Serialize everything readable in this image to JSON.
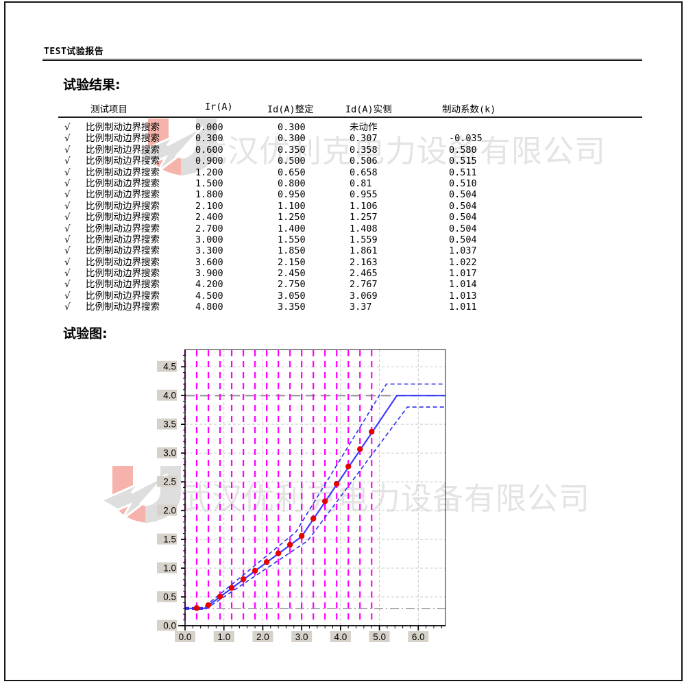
{
  "page": {
    "header_title": "TEST试验报告",
    "results_heading": "试验结果:",
    "chart_heading": "试验图:"
  },
  "watermark": {
    "company": "武汉优利克电力设备有限公司",
    "text_color": "#e4e4e4",
    "logo_red": "#f5b3ab",
    "logo_gray": "#dedede"
  },
  "table": {
    "columns": [
      "测试项目",
      "Ir(A)",
      "Id(A)整定",
      "Id(A)实侧",
      "制动系数(k)"
    ],
    "check_symbol": "√",
    "rows": [
      {
        "check": "√",
        "item": "比例制动边界搜索",
        "ir": "0.000",
        "id_set": "0.300",
        "id_meas": "未动作",
        "k": ""
      },
      {
        "check": "√",
        "item": "比例制动边界搜索",
        "ir": "0.300",
        "id_set": "0.300",
        "id_meas": "0.307",
        "k": "-0.035"
      },
      {
        "check": "√",
        "item": "比例制动边界搜索",
        "ir": "0.600",
        "id_set": "0.350",
        "id_meas": "0.358",
        "k": "0.580"
      },
      {
        "check": "√",
        "item": "比例制动边界搜索",
        "ir": "0.900",
        "id_set": "0.500",
        "id_meas": "0.506",
        "k": "0.515"
      },
      {
        "check": "√",
        "item": "比例制动边界搜索",
        "ir": "1.200",
        "id_set": "0.650",
        "id_meas": "0.658",
        "k": "0.511"
      },
      {
        "check": "√",
        "item": "比例制动边界搜索",
        "ir": "1.500",
        "id_set": "0.800",
        "id_meas": "0.81",
        "k": "0.510"
      },
      {
        "check": "√",
        "item": "比例制动边界搜索",
        "ir": "1.800",
        "id_set": "0.950",
        "id_meas": "0.955",
        "k": "0.504"
      },
      {
        "check": "√",
        "item": "比例制动边界搜索",
        "ir": "2.100",
        "id_set": "1.100",
        "id_meas": "1.106",
        "k": "0.504"
      },
      {
        "check": "√",
        "item": "比例制动边界搜索",
        "ir": "2.400",
        "id_set": "1.250",
        "id_meas": "1.257",
        "k": "0.504"
      },
      {
        "check": "√",
        "item": "比例制动边界搜索",
        "ir": "2.700",
        "id_set": "1.400",
        "id_meas": "1.408",
        "k": "0.504"
      },
      {
        "check": "√",
        "item": "比例制动边界搜索",
        "ir": "3.000",
        "id_set": "1.550",
        "id_meas": "1.559",
        "k": "0.504"
      },
      {
        "check": "√",
        "item": "比例制动边界搜索",
        "ir": "3.300",
        "id_set": "1.850",
        "id_meas": "1.861",
        "k": "1.037"
      },
      {
        "check": "√",
        "item": "比例制动边界搜索",
        "ir": "3.600",
        "id_set": "2.150",
        "id_meas": "2.163",
        "k": "1.022"
      },
      {
        "check": "√",
        "item": "比例制动边界搜索",
        "ir": "3.900",
        "id_set": "2.450",
        "id_meas": "2.465",
        "k": "1.017"
      },
      {
        "check": "√",
        "item": "比例制动边界搜索",
        "ir": "4.200",
        "id_set": "2.750",
        "id_meas": "2.767",
        "k": "1.014"
      },
      {
        "check": "√",
        "item": "比例制动边界搜索",
        "ir": "4.500",
        "id_set": "3.050",
        "id_meas": "3.069",
        "k": "1.013"
      },
      {
        "check": "√",
        "item": "比例制动边界搜索",
        "ir": "4.800",
        "id_set": "3.350",
        "id_meas": "3.37",
        "k": "1.011"
      }
    ]
  },
  "chart_data": {
    "type": "line",
    "title": "",
    "xlabel": "",
    "ylabel": "",
    "xlim": [
      0,
      6.7
    ],
    "ylim": [
      0,
      4.8
    ],
    "x_tick_values": [
      0,
      1,
      2,
      3,
      4,
      5,
      6
    ],
    "x_tick_labels": [
      "0.0",
      "1.0",
      "2.0",
      "3.0",
      "4.0",
      "5.0",
      "6.0"
    ],
    "x_minor_step": 0.2,
    "y_tick_values": [
      0,
      0.5,
      1,
      1.5,
      2,
      2.5,
      3,
      3.5,
      4,
      4.5
    ],
    "y_tick_labels": [
      "0.0",
      "0.5",
      "1.0",
      "1.5",
      "2.0",
      "2.5",
      "3.0",
      "3.5",
      "4.0",
      "4.5"
    ],
    "y_minor_step": 0.1,
    "grid": "on",
    "grid_x_values": [
      1,
      2,
      3,
      4,
      5,
      6
    ],
    "grid_y_values": [
      0.5,
      1,
      1.5,
      2,
      2.5,
      3,
      3.5,
      4,
      4.5
    ],
    "search_lines_x": [
      0,
      0.3,
      0.6,
      0.9,
      1.2,
      1.5,
      1.8,
      2.1,
      2.4,
      2.7,
      3.0,
      3.3,
      3.6,
      3.9,
      4.2,
      4.5,
      4.8
    ],
    "reference_lines_y": [
      {
        "y": 0.3,
        "style": "dash-dot"
      },
      {
        "y": 4.0,
        "style": "long-dash-thick"
      }
    ],
    "series": [
      {
        "id": "setting-curve",
        "style": "solid",
        "color": "#3a3aff",
        "points": [
          [
            0,
            0.3
          ],
          [
            0.5,
            0.3
          ],
          [
            3.0,
            1.55
          ],
          [
            5.45,
            4.0
          ],
          [
            6.7,
            4.0
          ]
        ]
      },
      {
        "id": "upper-band",
        "style": "dashed",
        "color": "#2a2aee",
        "points": [
          [
            0,
            0.315
          ],
          [
            0.475,
            0.315
          ],
          [
            2.85,
            1.628
          ],
          [
            5.18,
            4.2
          ],
          [
            6.7,
            4.2
          ]
        ]
      },
      {
        "id": "lower-band",
        "style": "dashed",
        "color": "#2a2aee",
        "points": [
          [
            0,
            0.285
          ],
          [
            0.525,
            0.285
          ],
          [
            3.15,
            1.473
          ],
          [
            5.72,
            3.8
          ],
          [
            6.7,
            3.8
          ]
        ]
      },
      {
        "id": "measured-points",
        "style": "scatter",
        "color": "#e60000",
        "points": [
          [
            0.3,
            0.307
          ],
          [
            0.6,
            0.358
          ],
          [
            0.9,
            0.506
          ],
          [
            1.2,
            0.658
          ],
          [
            1.5,
            0.81
          ],
          [
            1.8,
            0.955
          ],
          [
            2.1,
            1.106
          ],
          [
            2.4,
            1.257
          ],
          [
            2.7,
            1.408
          ],
          [
            3.0,
            1.559
          ],
          [
            3.3,
            1.861
          ],
          [
            3.6,
            2.163
          ],
          [
            3.9,
            2.465
          ],
          [
            4.2,
            2.767
          ],
          [
            4.5,
            3.069
          ],
          [
            4.8,
            3.37
          ]
        ]
      }
    ],
    "colors": {
      "grid": "#c9c9c9",
      "search_line": "#ff00ff",
      "reference": "#9b9b9b",
      "axis": "#000000",
      "label_bg": "#d6d2c9",
      "label_text": "#000000"
    }
  }
}
